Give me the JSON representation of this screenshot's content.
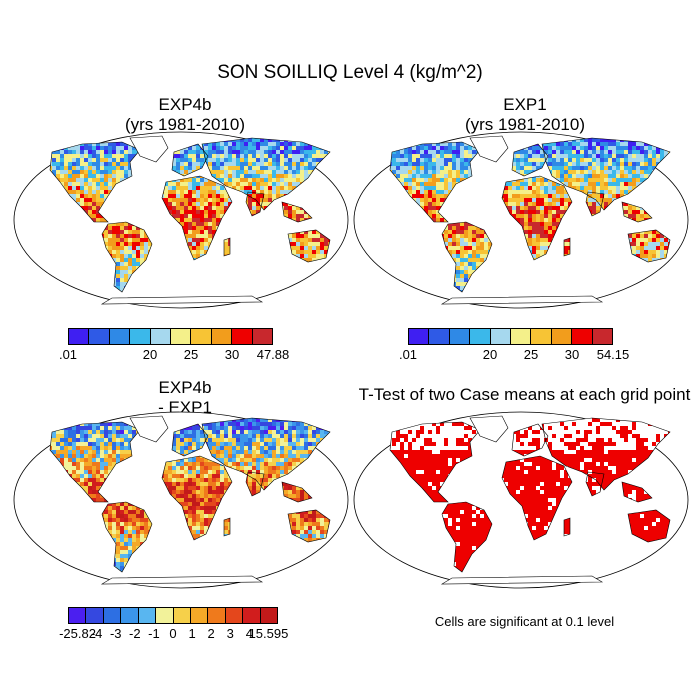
{
  "title": "SON SOILLIQ Level 4 (kg/m^2)",
  "panels": {
    "top_left": {
      "title_line1": "EXP4b",
      "title_line2": "(yrs 1981-2010)"
    },
    "top_right": {
      "title_line1": "EXP1",
      "title_line2": "(yrs 1981-2010)"
    },
    "bottom_left": {
      "title_line1": "EXP4b",
      "title_line2": "- EXP1"
    },
    "bottom_right": {
      "title_line1": "T-Test of two Case means at each grid point"
    }
  },
  "colorbars": {
    "abs_colors": [
      "#3f1ff2",
      "#2f5ae6",
      "#2f89e6",
      "#3bb8ea",
      "#a6d8ee",
      "#f4f08a",
      "#f7c435",
      "#f29d1c",
      "#ee0000",
      "#c8282d"
    ],
    "exp4b_labels": [
      ".01",
      "20",
      "25",
      "30",
      "47.88"
    ],
    "exp1_labels": [
      ".01",
      "20",
      "25",
      "30",
      "54.15"
    ],
    "diff_colors": [
      "#4b1ff0",
      "#3548e0",
      "#2d6fe3",
      "#3b95ea",
      "#59b6f0",
      "#f2f29a",
      "#f6d04a",
      "#f5a928",
      "#ef7a1c",
      "#e4471c",
      "#d11d1d",
      "#c21a1a"
    ],
    "diff_labels": [
      "-25.82",
      "-4",
      "-3",
      "-2",
      "-1",
      "0",
      "1",
      "2",
      "3",
      "4",
      "15.595"
    ]
  },
  "significance_note": "Cells are significant at 0.1 level",
  "map_colors": {
    "land_blue": "#3b82e6",
    "land_orange": "#f3a52a",
    "land_red": "#e6322a",
    "signif_red": "#ee0000",
    "ice": "#ffffff"
  }
}
